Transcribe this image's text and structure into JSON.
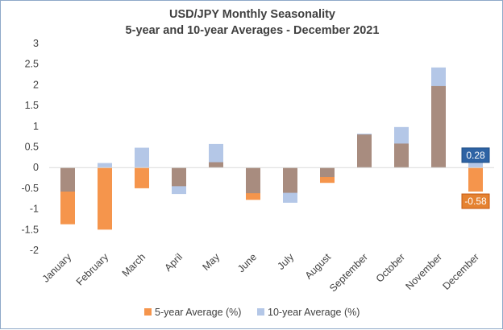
{
  "chart_data": {
    "type": "bar",
    "title": "USD/JPY Monthly Seasonality",
    "subtitle": "5-year and 10-year Averages - December 2021",
    "xlabel": "",
    "ylabel": "",
    "ylim": [
      -2,
      3
    ],
    "yticks": [
      -2,
      -1.5,
      -1,
      -0.5,
      0,
      0.5,
      1,
      1.5,
      2,
      2.5,
      3
    ],
    "categories": [
      "January",
      "February",
      "March",
      "April",
      "May",
      "June",
      "July",
      "August",
      "September",
      "October",
      "November",
      "December"
    ],
    "series": [
      {
        "name": "5-year Average (%)",
        "color": "#f5954c",
        "values": [
          -1.37,
          -1.5,
          -0.5,
          -0.45,
          0.13,
          -0.78,
          -0.61,
          -0.37,
          0.8,
          0.58,
          1.97,
          -0.58
        ]
      },
      {
        "name": "10-year Average (%)",
        "color": "#b4c7e7",
        "values": [
          -0.58,
          0.11,
          0.48,
          -0.64,
          0.57,
          -0.62,
          -0.85,
          -0.23,
          0.82,
          0.98,
          2.42,
          0.28
        ]
      }
    ],
    "overlap_color": "#a88c7f",
    "data_labels": [
      {
        "category": "December",
        "series": "10-year Average (%)",
        "text": "0.28",
        "color": "#2e63a4"
      },
      {
        "category": "December",
        "series": "5-year Average (%)",
        "text": "-0.58",
        "color": "#e58231"
      }
    ],
    "legend": "bottom",
    "grid": false
  }
}
